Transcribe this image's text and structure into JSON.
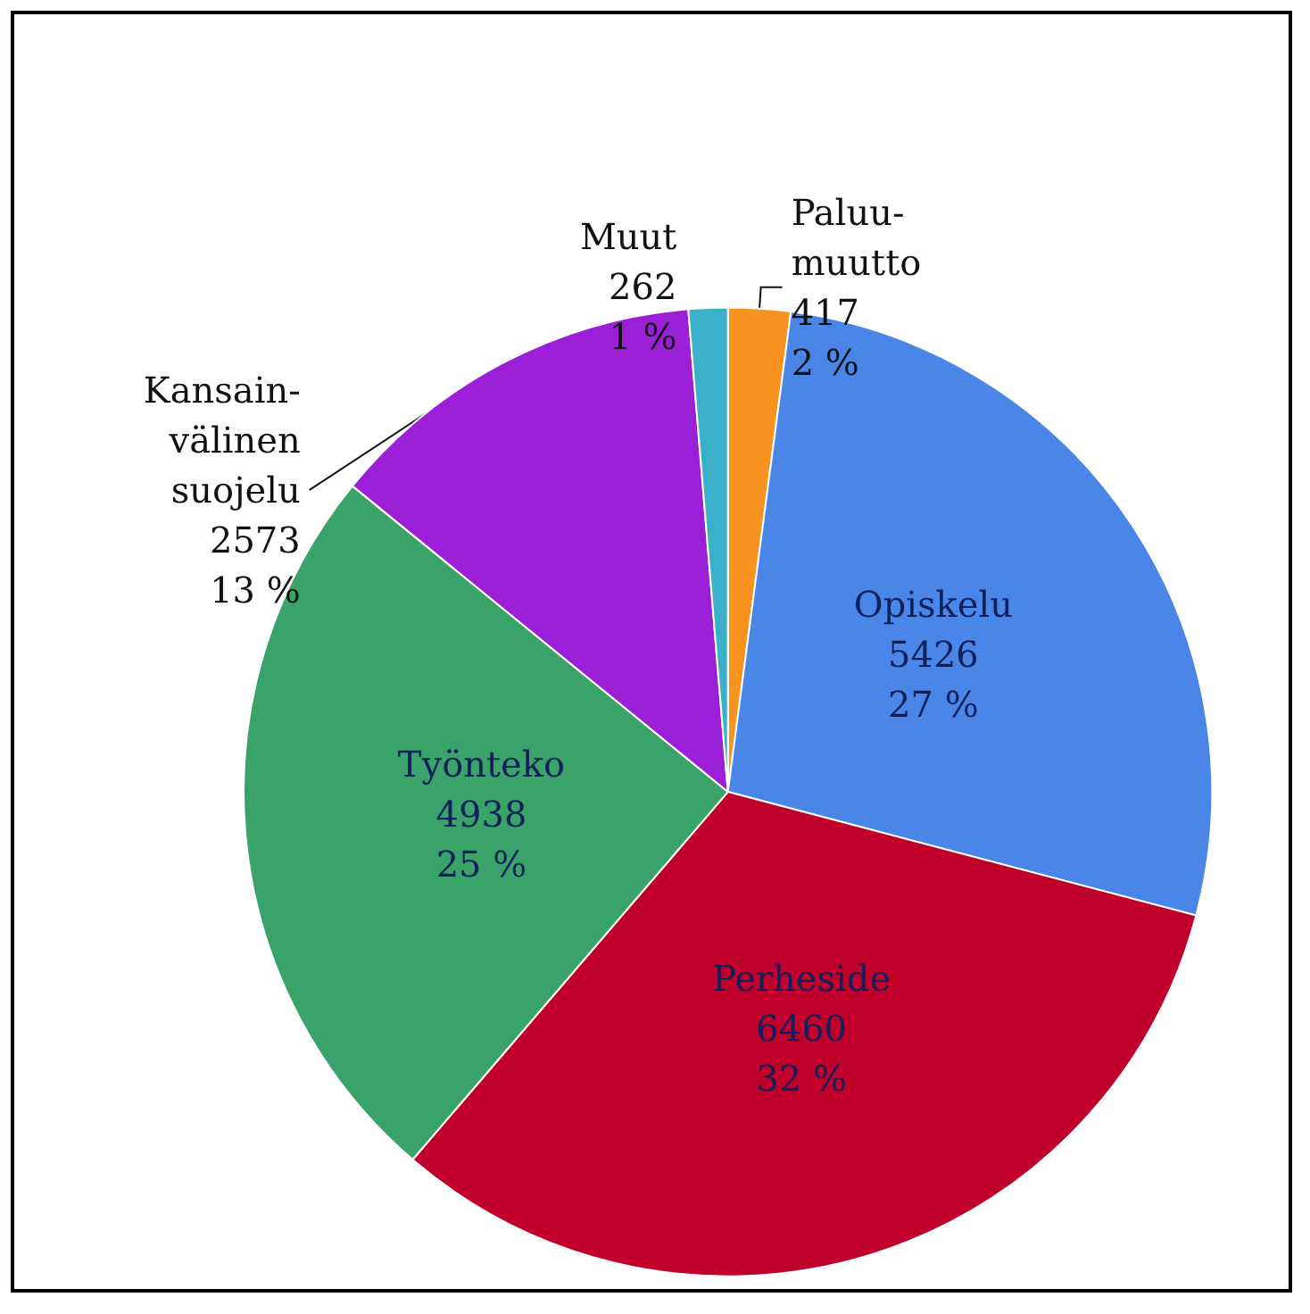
{
  "chart_data": {
    "type": "pie",
    "categories": [
      "Paluu-\nmuutto",
      "Opiskelu",
      "Perheside",
      "Työnteko",
      "Kansain-\nvälinen\nsuojelu",
      "Muut"
    ],
    "values": [
      417,
      5426,
      6460,
      4938,
      2573,
      262
    ],
    "colors": [
      "#f7931e",
      "#4a86e8",
      "#c0002a",
      "#3aa36a",
      "#9b1fd6",
      "#3bb0c9"
    ],
    "value_labels": [
      "417\n2 %",
      "5426\n27 %",
      "6460\n32 %",
      "4938\n25 %",
      "2573\n13 %",
      "262\n1 %"
    ],
    "legend": false
  }
}
